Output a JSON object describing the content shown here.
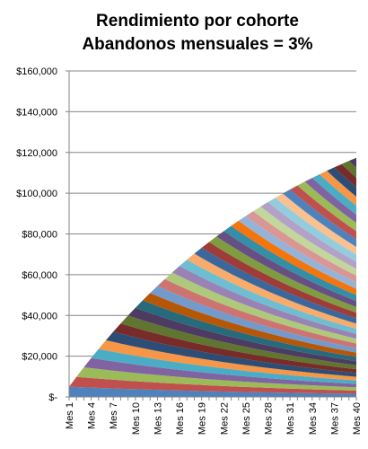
{
  "chart_data": {
    "type": "area",
    "stacked": true,
    "title_line1": "Rendimiento por cohorte",
    "title_line2": "Abandonos  mensuales = 3%",
    "xlabel": "",
    "ylabel": "",
    "ylim": [
      0,
      160000
    ],
    "y_ticks": [
      "$-",
      "$20,000",
      "$40,000",
      "$60,000",
      "$80,000",
      "$100,000",
      "$120,000",
      "$140,000",
      "$160,000"
    ],
    "x_tick_labels": [
      "Mes 1",
      "Mes 4",
      "Mes 7",
      "Mes 10",
      "Mes 13",
      "Mes 16",
      "Mes 19",
      "Mes 22",
      "Mes 25",
      "Mes 28",
      "Mes 31",
      "Mes 34",
      "Mes 37",
      "Mes 40"
    ],
    "grid": true,
    "legend": "none",
    "cohorts": 40,
    "months": 40,
    "cohort_initial_value": 5000,
    "monthly_churn": 0.03,
    "palette": [
      "#4f81bd",
      "#c0504d",
      "#9bbb59",
      "#8064a2",
      "#4bacc6",
      "#f79646",
      "#2c4d75",
      "#772c2a",
      "#5f7530",
      "#4d3b62",
      "#276a7c",
      "#b65708",
      "#729aca",
      "#cd7371",
      "#afc97a",
      "#9983b5",
      "#6fbdd1",
      "#f9ab6b",
      "#3a679c",
      "#9f3b38",
      "#7f9d40",
      "#664f83",
      "#358ea6",
      "#f3750b",
      "#95b3d7",
      "#d99694",
      "#c3d69b",
      "#b3a2c7",
      "#93cddd",
      "#fac08f"
    ]
  }
}
